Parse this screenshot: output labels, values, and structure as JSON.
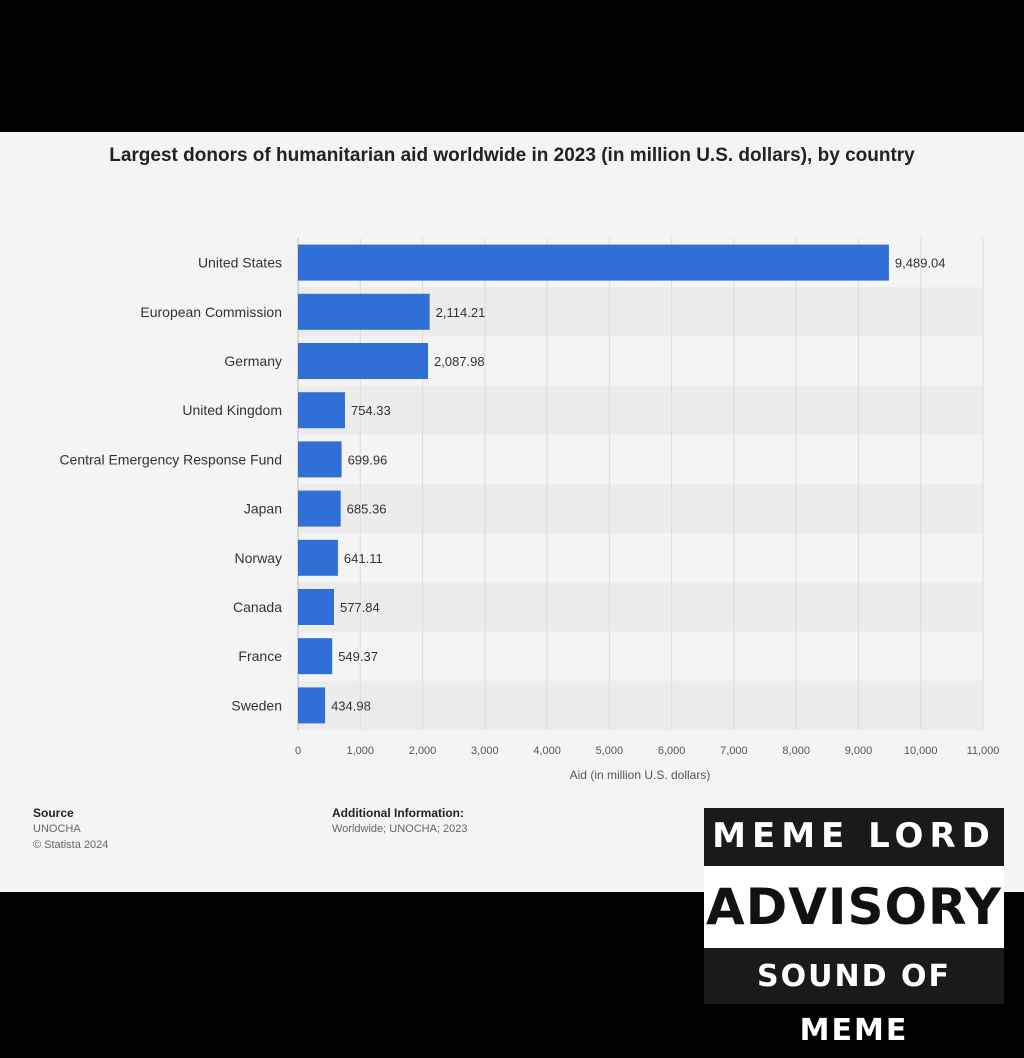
{
  "chart_data": {
    "type": "bar",
    "orientation": "horizontal",
    "title": "Largest donors of humanitarian aid worldwide in 2023 (in million U.S. dollars), by country",
    "xlabel": "Aid (in million U.S. dollars)",
    "ylabel": "",
    "xlim": [
      0,
      11000
    ],
    "x_ticks": [
      0,
      1000,
      2000,
      3000,
      4000,
      5000,
      6000,
      7000,
      8000,
      9000,
      10000,
      11000
    ],
    "x_tick_labels": [
      "0",
      "1,000",
      "2,000",
      "3,000",
      "4,000",
      "5,000",
      "6,000",
      "7,000",
      "8,000",
      "9,000",
      "10,000",
      "11,000"
    ],
    "categories": [
      "United States",
      "European Commission",
      "Germany",
      "United Kingdom",
      "Central Emergency Response Fund",
      "Japan",
      "Norway",
      "Canada",
      "France",
      "Sweden"
    ],
    "values": [
      9489.04,
      2114.21,
      2087.98,
      754.33,
      699.96,
      685.36,
      641.11,
      577.84,
      549.37,
      434.98
    ],
    "value_labels": [
      "9,489.04",
      "2,114.21",
      "2,087.98",
      "754.33",
      "699.96",
      "685.36",
      "641.11",
      "577.84",
      "549.37",
      "434.98"
    ],
    "bar_color": "#2f6fd6",
    "grid": true
  },
  "footer": {
    "source_heading": "Source",
    "source_lines": [
      "UNOCHA",
      "© Statista 2024"
    ],
    "info_heading": "Additional Information:",
    "info_text": "Worldwide; UNOCHA; 2023"
  },
  "badge": {
    "line1": "MEME LORD",
    "line2": "ADVISORY",
    "line3": "SOUND OF MEME"
  }
}
